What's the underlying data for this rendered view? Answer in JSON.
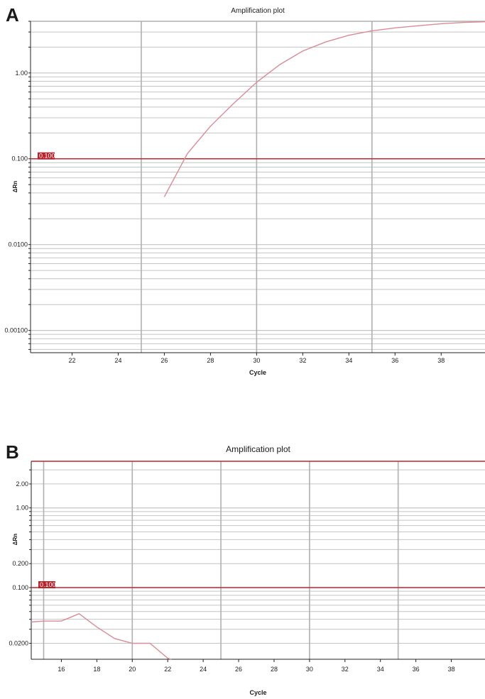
{
  "colors": {
    "curve": "#d98c94",
    "threshold": "#c0272d",
    "threshold_label_bg": "#b8222a",
    "grid": "#c4c4c4",
    "axis": "#222222"
  },
  "chart_data": [
    {
      "panel_label": "A",
      "type": "line",
      "title": "Amplification plot",
      "xlabel": "Cycle",
      "ylabel": "ΔRn",
      "yscale": "log",
      "xlim": [
        20.2,
        39.9
      ],
      "ylim": [
        0.00055,
        4.0
      ],
      "x_ticks": [
        "22",
        "24",
        "26",
        "28",
        "30",
        "32",
        "34",
        "36",
        "38"
      ],
      "y_ticks": [
        {
          "value": 1.0,
          "label": "1.00"
        },
        {
          "value": 0.1,
          "label": "0.100"
        },
        {
          "value": 0.01,
          "label": "0.0100"
        },
        {
          "value": 0.001,
          "label": "0.00100"
        }
      ],
      "vertical_gridlines": [
        25,
        30,
        35
      ],
      "grid": true,
      "threshold": {
        "value": 0.1,
        "label": "0.100"
      },
      "series": [
        {
          "x": [
            26,
            27,
            28,
            29,
            30,
            31,
            32,
            33,
            34,
            35,
            36,
            37,
            38,
            39,
            39.9
          ],
          "y": [
            0.036,
            0.115,
            0.24,
            0.44,
            0.78,
            1.25,
            1.8,
            2.3,
            2.75,
            3.1,
            3.35,
            3.55,
            3.75,
            3.88,
            3.95
          ]
        }
      ]
    },
    {
      "panel_label": "B",
      "type": "line",
      "title": "Amplification plot",
      "xlabel": "Cycle",
      "ylabel": "ΔRn",
      "yscale": "log",
      "xlim": [
        14.3,
        39.9
      ],
      "ylim": [
        0.0126,
        3.85
      ],
      "x_ticks": [
        "16",
        "18",
        "20",
        "22",
        "24",
        "26",
        "28",
        "30",
        "32",
        "34",
        "36",
        "38"
      ],
      "y_ticks": [
        {
          "value": 2.0,
          "label": "2.00"
        },
        {
          "value": 1.0,
          "label": "1.00"
        },
        {
          "value": 0.2,
          "label": "0.200"
        },
        {
          "value": 0.1,
          "label": "0.100"
        },
        {
          "value": 0.02,
          "label": "0.0200"
        }
      ],
      "vertical_gridlines": [
        15,
        20,
        25,
        30,
        35
      ],
      "grid": true,
      "threshold": {
        "value": 0.1,
        "label": "0.100"
      },
      "series": [
        {
          "x": [
            14.3,
            15,
            16,
            17,
            18,
            19,
            20,
            21,
            22,
            22.2
          ],
          "y": [
            0.037,
            0.038,
            0.038,
            0.047,
            0.032,
            0.023,
            0.02,
            0.02,
            0.013,
            0.0126
          ]
        }
      ]
    }
  ]
}
